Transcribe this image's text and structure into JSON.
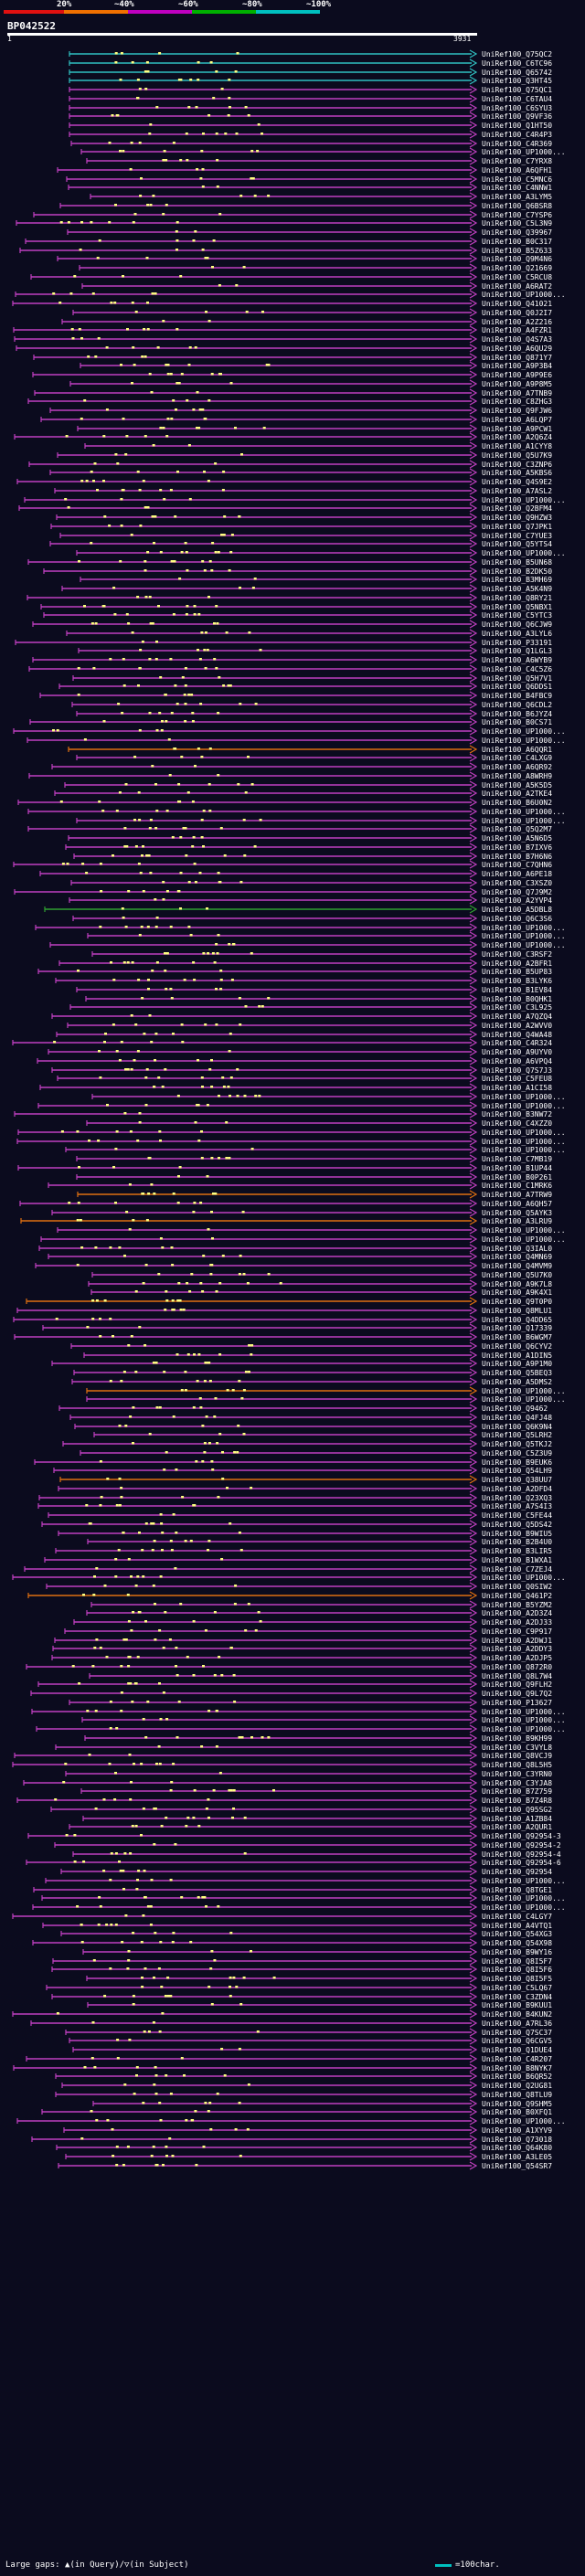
{
  "colors": {
    "background": "#0b0b1e",
    "legend_red": "#e01010",
    "legend_orange": "#f07000",
    "legend_purple": "#c000c0",
    "legend_green": "#00b000",
    "legend_cyan": "#00c0c0",
    "hit_magenta": "#c040c0",
    "hit_cyan": "#30c0c0",
    "hit_green": "#30a030",
    "hit_orange": "#e07010",
    "gap_marker": "#ffff80"
  },
  "legend": {
    "labels": [
      "20%",
      "~40%",
      "~60%",
      "~80%",
      "~100%"
    ]
  },
  "query": {
    "title": "BP042522",
    "ruler_start": "1",
    "ruler_end": "3931"
  },
  "footer": {
    "gaps_label": "Large gaps: ▲(in Query)/▽(in Subject)",
    "scale_label": "=100char."
  },
  "hits": [
    "UniRef100_Q75QC2",
    "UniRef100_C6TC96",
    "UniRef100_Q65742",
    "UniRef100_Q3HT45",
    "UniRef100_Q75QC1",
    "UniRef100_C6TAU4",
    "UniRef100_C6SYU3",
    "UniRef100_Q9VF36",
    "UniRef100_Q1HT50",
    "UniRef100_C4R4P3",
    "UniRef100_C4R369",
    "UniRef100_UP1000...",
    "UniRef100_C7YRX8",
    "UniRef100_A6QFH1",
    "UniRef100_C5MNC6",
    "UniRef100_C4NNW1",
    "UniRef100_A3LYM5",
    "UniRef100_Q6BSR8",
    "UniRef100_C7YSP6",
    "UniRef100_C5L3N9",
    "UniRef100_Q39967",
    "UniRef100_B0C317",
    "UniRef100_B5Z633",
    "UniRef100_Q9M4N6",
    "UniRef100_Q21669",
    "UniRef100_C5RCU8",
    "UniRef100_A6RAT2",
    "UniRef100_UP1000...",
    "UniRef100_Q41021",
    "UniRef100_Q0J2I7",
    "UniRef100_A2Z216",
    "UniRef100_A4FZR1",
    "UniRef100_Q4S7A3",
    "UniRef100_A6QU29",
    "UniRef100_Q871Y7",
    "UniRef100_A9P3B4",
    "UniRef100_A9P9E6",
    "UniRef100_A9P8M5",
    "UniRef100_A7TNB9",
    "UniRef100_C8ZHG3",
    "UniRef100_Q9FJW6",
    "UniRef100_A6LQP7",
    "UniRef100_A9PCW1",
    "UniRef100_A2Q6Z4",
    "UniRef100_A1CYY8",
    "UniRef100_Q5U7K9",
    "UniRef100_C3ZNP6",
    "UniRef100_A5KBS6",
    "UniRef100_Q4S9E2",
    "UniRef100_A7ASL2",
    "UniRef100_UP1000...",
    "UniRef100_Q2BFM4",
    "UniRef100_Q9HZW3",
    "UniRef100_Q7JPK1",
    "UniRef100_C7YUE3",
    "UniRef100_Q5YTS4",
    "UniRef100_UP1000...",
    "UniRef100_B5UN68",
    "UniRef100_B2DK50",
    "UniRef100_B3MH69",
    "UniRef100_A5K4N9",
    "UniRef100_Q8RY21",
    "UniRef100_Q5NBX1",
    "UniRef100_C5YTC3",
    "UniRef100_Q6CJW9",
    "UniRef100_A3LYL6",
    "UniRef100_P33191",
    "UniRef100_Q1LGL3",
    "UniRef100_A6WYB9",
    "UniRef100_C4C5Z6",
    "UniRef100_Q5H7V1",
    "UniRef100_Q6DDS1",
    "UniRef100_B4FBC9",
    "UniRef100_Q6CDL2",
    "UniRef100_B6JYZ4",
    "UniRef100_B0CS71",
    "UniRef100_UP1000...",
    "UniRef100_UP1000...",
    "UniRef100_A6QQR1",
    "UniRef100_C4LXG9",
    "UniRef100_A6QR92",
    "UniRef100_A8WRH9",
    "UniRef100_A5K5D5",
    "UniRef100_A2TKE4",
    "UniRef100_B6U0N2",
    "UniRef100_UP1000...",
    "UniRef100_UP1000...",
    "UniRef100_Q5Q2M7",
    "UniRef100_A5N6D5",
    "UniRef100_B7IXV6",
    "UniRef100_B7H6N6",
    "UniRef100_C7QHN6",
    "UniRef100_A6PE18",
    "UniRef100_C3XSZ0",
    "UniRef100_Q7J9M2",
    "UniRef100_A2YVP4",
    "UniRef100_A5DBL8",
    "UniRef100_Q6C3S6",
    "UniRef100_UP1000...",
    "UniRef100_UP1000...",
    "UniRef100_UP1000...",
    "UniRef100_C3RSF2",
    "UniRef100_A2BFR1",
    "UniRef100_B5UP83",
    "UniRef100_B3LYK6",
    "UniRef100_B1EV84",
    "UniRef100_B0QHK1",
    "UniRef100_C3L925",
    "UniRef100_A7QZQ4",
    "UniRef100_A2WVV0",
    "UniRef100_Q4WA48",
    "UniRef100_C4R324",
    "UniRef100_A9UYV0",
    "UniRef100_A6VPQ4",
    "UniRef100_Q7S7J3",
    "UniRef100_C5FEU8",
    "UniRef100_A1CI58",
    "UniRef100_UP1000...",
    "UniRef100_UP1000...",
    "UniRef100_B3NW72",
    "UniRef100_C4XZZ0",
    "UniRef100_UP1000...",
    "UniRef100_UP1000...",
    "UniRef100_UP1000...",
    "UniRef100_C7MB19",
    "UniRef100_B1UP44",
    "UniRef100_B0P261",
    "UniRef100_C1MRK6",
    "UniRef100_A7TRW9",
    "UniRef100_A6QH57",
    "UniRef100_Q5AYK3",
    "UniRef100_A3LRU9",
    "UniRef100_UP1000...",
    "UniRef100_UP1000...",
    "UniRef100_Q3IAL0",
    "UniRef100_Q4MN69",
    "UniRef100_Q4MVM9",
    "UniRef100_Q5U7K0",
    "UniRef100_A9K7L8",
    "UniRef100_A9K4X1",
    "UniRef100_Q9T0P0",
    "UniRef100_Q8MLU1",
    "UniRef100_Q4DD65",
    "UniRef100_Q17339",
    "UniRef100_B6WGM7",
    "UniRef100_Q6CYV2",
    "UniRef100_A1DIN5",
    "UniRef100_A9P1M0",
    "UniRef100_Q5BEQ3",
    "UniRef100_A5DMS2",
    "UniRef100_UP1000...",
    "UniRef100_UP1000...",
    "UniRef100_Q9462",
    "UniRef100_Q4FJ48",
    "UniRef100_Q6K9N4",
    "UniRef100_Q5LRH2",
    "UniRef100_Q5TKJ2",
    "UniRef100_C5Z3U9",
    "UniRef100_B9EUK6",
    "UniRef100_Q54LH9",
    "UniRef100_Q38UU7",
    "UniRef100_A2DFD4",
    "UniRef100_Q23XQ3",
    "UniRef100_A7S4I3",
    "UniRef100_C5FE44",
    "UniRef100_Q5DS42",
    "UniRef100_B9WIU5",
    "UniRef100_B2B4U0",
    "UniRef100_B3LIR5",
    "UniRef100_B1WXA1",
    "UniRef100_C7ZEJ4",
    "UniRef100_UP1000...",
    "UniRef100_Q0SIW2",
    "UniRef100_Q461P2",
    "UniRef100_B5YZM2",
    "UniRef100_A2D3Z4",
    "UniRef100_A2DJ33",
    "UniRef100_C9P917",
    "UniRef100_A2DWJ1",
    "UniRef100_A2DDY3",
    "UniRef100_A2DJP5",
    "UniRef100_Q872R0",
    "UniRef100_Q8L7W4",
    "UniRef100_Q9FLH2",
    "UniRef100_Q9L7Q2",
    "UniRef100_P13627",
    "UniRef100_UP1000...",
    "UniRef100_UP1000...",
    "UniRef100_UP1000...",
    "UniRef100_B9KH99",
    "UniRef100_C3VYL8",
    "UniRef100_Q8VCJ9",
    "UniRef100_Q8L5H5",
    "UniRef100_C3YRN0",
    "UniRef100_C3YJA8",
    "UniRef100_B7Z759",
    "UniRef100_B7Z4R8",
    "UniRef100_Q95SG2",
    "UniRef100_A1ZB84",
    "UniRef100_A2QUR1",
    "UniRef100_Q92954-3",
    "UniRef100_Q92954-2",
    "UniRef100_Q92954-4",
    "UniRef100_Q92954-6",
    "UniRef100_Q92954",
    "UniRef100_UP1000...",
    "UniRef100_Q8TGE1",
    "UniRef100_UP1000...",
    "UniRef100_UP1000...",
    "UniRef100_C4LGY7",
    "UniRef100_A4VTQ1",
    "UniRef100_Q54XG3",
    "UniRef100_Q54X98",
    "UniRef100_B9WY16",
    "UniRef100_Q8I5F7",
    "UniRef100_Q8I5F6",
    "UniRef100_Q8I5F5",
    "UniRef100_C5LQ67",
    "UniRef100_C3ZDN4",
    "UniRef100_B9KUU1",
    "UniRef100_B4KUN2",
    "UniRef100_A7RL36",
    "UniRef100_Q7SC37",
    "UniRef100_Q6CGV5",
    "UniRef100_Q1DUE4",
    "UniRef100_C4R207",
    "UniRef100_B8NYK7",
    "UniRef100_B6QR52",
    "UniRef100_Q2UG81",
    "UniRef100_Q8TLU9",
    "UniRef100_Q9SHM5",
    "UniRef100_B0XFQ1",
    "UniRef100_UP1000...",
    "UniRef100_A1XYV9",
    "UniRef100_Q73018",
    "UniRef100_Q64K80",
    "UniRef100_A3LE05",
    "UniRef100_Q54SR7"
  ]
}
